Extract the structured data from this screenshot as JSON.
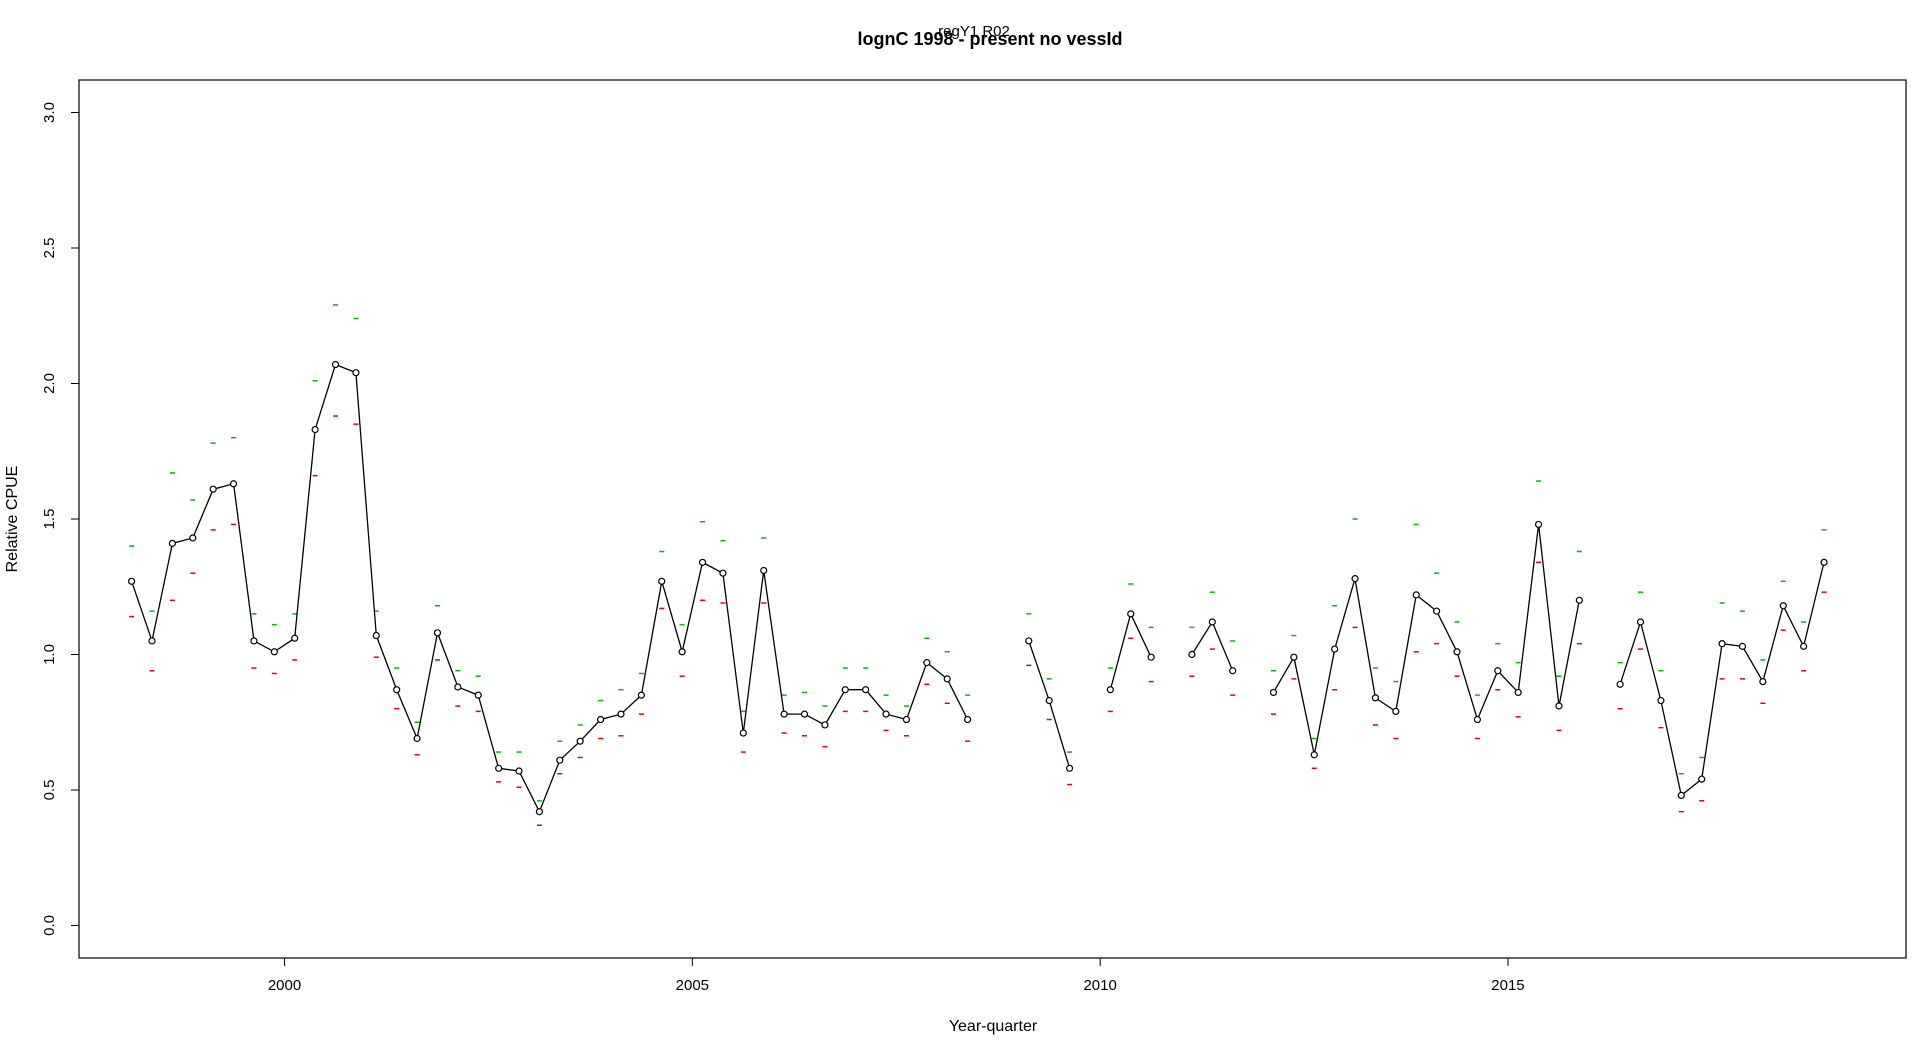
{
  "chart_data": {
    "type": "line",
    "title": "lognC 1998 - present no vessId",
    "subtitle": "regY1 R02",
    "xlabel": "Year-quarter",
    "ylabel": "Relative CPUE",
    "xlim": [
      1997.48,
      2019.88
    ],
    "ylim": [
      -0.12,
      3.12
    ],
    "xticks": [
      2000,
      2005,
      2010,
      2015
    ],
    "xtick_labels": [
      "2000",
      "2005",
      "2010",
      "2015"
    ],
    "yticks": [
      0.0,
      0.5,
      1.0,
      1.5,
      2.0,
      2.5,
      3.0
    ],
    "ytick_labels": [
      "0.0",
      "0.5",
      "1.0",
      "1.5",
      "2.0",
      "2.5",
      "3.0"
    ],
    "line_color": "#000000",
    "upper_color": "#00bb00",
    "lower_color": "#ee0000",
    "series": [
      {
        "name": "CPUE",
        "x": [
          1998.125,
          1998.375,
          1998.625,
          1998.875,
          1999.125,
          1999.375,
          1999.625,
          1999.875,
          2000.125,
          2000.375,
          2000.625,
          2000.875,
          2001.125,
          2001.375,
          2001.625,
          2001.875,
          2002.125,
          2002.375,
          2002.625,
          2002.875,
          2003.125,
          2003.375,
          2003.625,
          2003.875,
          2004.125,
          2004.375,
          2004.625,
          2004.875,
          2005.125,
          2005.375,
          2005.625,
          2005.875,
          2006.125,
          2006.375,
          2006.625,
          2006.875,
          2007.125,
          2007.375,
          2007.625,
          2007.875,
          2008.125,
          2008.375,
          2008.625,
          2008.875,
          2009.125,
          2009.375,
          2009.625,
          2009.875,
          2010.125,
          2010.375,
          2010.625,
          2010.875,
          2011.125,
          2011.375,
          2011.625,
          2011.875,
          2012.125,
          2012.375,
          2012.625,
          2012.875,
          2013.125,
          2013.375,
          2013.625,
          2013.875,
          2014.125,
          2014.375,
          2014.625,
          2014.875,
          2015.125,
          2015.375,
          2015.625,
          2015.875,
          2016.125,
          2016.375,
          2016.625,
          2016.875,
          2017.125,
          2017.375,
          2017.625,
          2017.875,
          2018.125,
          2018.375,
          2018.625,
          2018.875
        ],
        "y": [
          1.27,
          1.05,
          1.41,
          1.43,
          1.61,
          1.63,
          1.05,
          1.01,
          1.06,
          1.83,
          2.07,
          2.04,
          1.07,
          0.87,
          0.69,
          1.08,
          0.88,
          0.85,
          0.58,
          0.57,
          0.42,
          0.61,
          0.68,
          0.76,
          0.78,
          0.85,
          1.27,
          1.01,
          1.34,
          1.3,
          0.71,
          1.31,
          0.78,
          0.78,
          0.74,
          0.87,
          0.87,
          0.78,
          0.76,
          0.97,
          0.91,
          0.76,
          null,
          null,
          1.05,
          0.83,
          0.58,
          null,
          0.87,
          1.15,
          0.99,
          null,
          1.0,
          1.12,
          0.94,
          null,
          0.86,
          0.99,
          0.63,
          1.02,
          1.28,
          0.84,
          0.79,
          1.22,
          1.16,
          1.01,
          0.76,
          0.94,
          0.86,
          1.48,
          0.81,
          1.2,
          null,
          0.89,
          1.12,
          0.83,
          0.48,
          0.54,
          1.04,
          1.03,
          0.9,
          1.18,
          1.03,
          1.34
        ],
        "upper": [
          1.4,
          1.16,
          1.67,
          1.57,
          1.78,
          1.8,
          1.15,
          1.11,
          1.15,
          2.01,
          2.29,
          2.24,
          1.16,
          0.95,
          0.75,
          1.18,
          0.94,
          0.92,
          0.64,
          0.64,
          0.46,
          0.68,
          0.74,
          0.83,
          0.87,
          0.93,
          1.38,
          1.11,
          1.49,
          1.42,
          0.79,
          1.43,
          0.85,
          0.86,
          0.81,
          0.95,
          0.95,
          0.85,
          0.81,
          1.06,
          1.01,
          0.85,
          null,
          null,
          1.15,
          0.91,
          0.64,
          null,
          0.95,
          1.26,
          1.1,
          null,
          1.1,
          1.23,
          1.05,
          null,
          0.94,
          1.07,
          0.69,
          1.18,
          1.5,
          0.95,
          0.9,
          1.48,
          1.3,
          1.12,
          0.85,
          1.04,
          0.97,
          1.64,
          0.92,
          1.38,
          null,
          0.97,
          1.23,
          0.94,
          0.56,
          0.62,
          1.19,
          1.16,
          0.98,
          1.27,
          1.12,
          1.46
        ],
        "lower": [
          1.14,
          0.94,
          1.2,
          1.3,
          1.46,
          1.48,
          0.95,
          0.93,
          0.98,
          1.66,
          1.88,
          1.85,
          0.99,
          0.8,
          0.63,
          0.98,
          0.81,
          0.79,
          0.53,
          0.51,
          0.37,
          0.56,
          0.62,
          0.69,
          0.7,
          0.78,
          1.17,
          0.92,
          1.2,
          1.19,
          0.64,
          1.19,
          0.71,
          0.7,
          0.66,
          0.79,
          0.79,
          0.72,
          0.7,
          0.89,
          0.82,
          0.68,
          null,
          null,
          0.96,
          0.76,
          0.52,
          null,
          0.79,
          1.06,
          0.9,
          null,
          0.92,
          1.02,
          0.85,
          null,
          0.78,
          0.91,
          0.58,
          0.87,
          1.1,
          0.74,
          0.69,
          1.01,
          1.04,
          0.92,
          0.69,
          0.87,
          0.77,
          1.34,
          0.72,
          1.04,
          null,
          0.8,
          1.02,
          0.73,
          0.42,
          0.46,
          0.91,
          0.91,
          0.82,
          1.09,
          0.94,
          1.23
        ]
      }
    ]
  }
}
